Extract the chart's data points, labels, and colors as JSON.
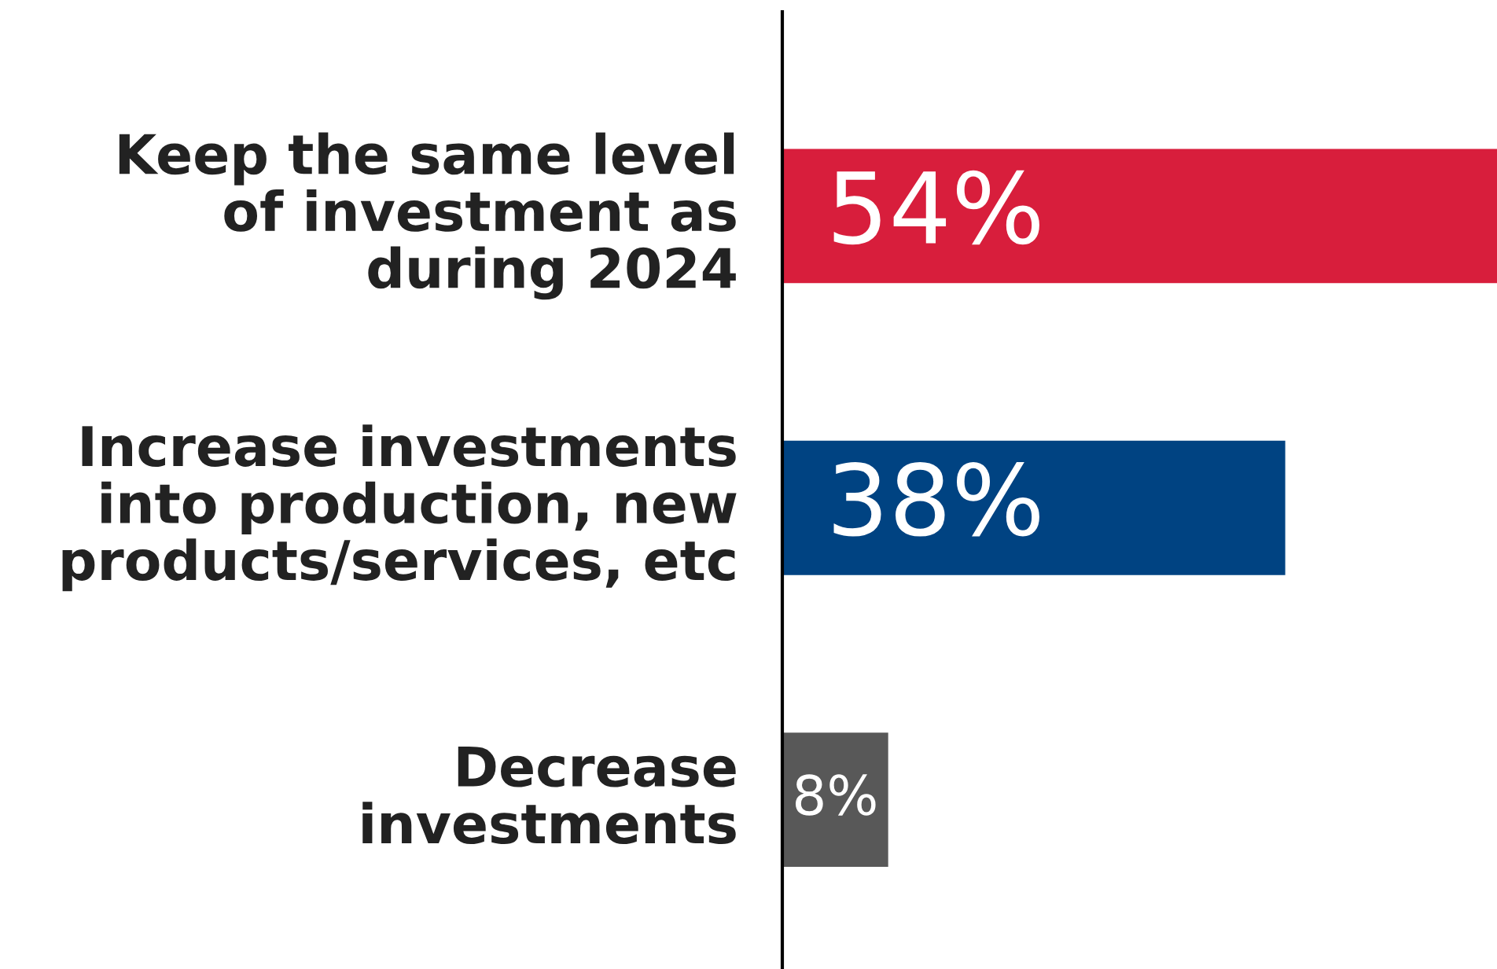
{
  "chart_data": {
    "type": "bar",
    "orientation": "horizontal",
    "categories": [
      "Keep the same level\nof investment as\nduring 2024",
      "Increase investments\ninto production, new\nproducts/services, etc",
      "Decrease\ninvestments"
    ],
    "values": [
      54,
      38,
      8
    ],
    "colors": [
      "#d81e3c",
      "#004382",
      "#585858"
    ],
    "value_labels": [
      "54%",
      "38%",
      "8%"
    ]
  }
}
